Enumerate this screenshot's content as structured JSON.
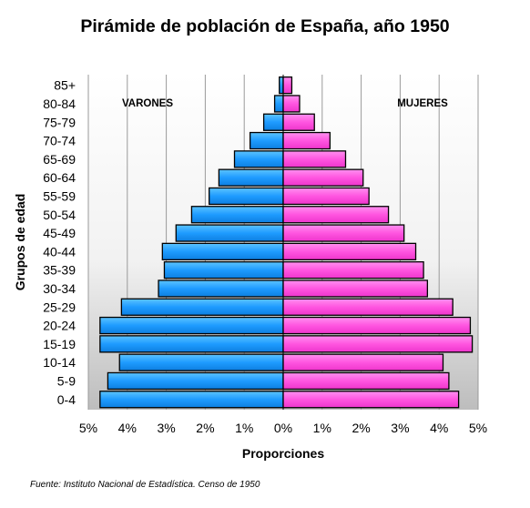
{
  "chart_data": {
    "type": "bar",
    "title": "Pirámide de población de España, año 1950",
    "xlabel": "Proporciones",
    "ylabel": "Grupos de edad",
    "categories": [
      "0-4",
      "5-9",
      "10-14",
      "15-19",
      "20-24",
      "25-29",
      "30-34",
      "35-39",
      "40-44",
      "45-49",
      "50-54",
      "55-59",
      "60-64",
      "65-69",
      "70-74",
      "75-79",
      "80-84",
      "85+"
    ],
    "series": [
      {
        "name": "VARONES",
        "color": "#1e9bff",
        "values": [
          4.7,
          4.5,
          4.2,
          4.7,
          4.7,
          4.15,
          3.2,
          3.05,
          3.1,
          2.75,
          2.35,
          1.9,
          1.65,
          1.25,
          0.85,
          0.5,
          0.22,
          0.1
        ]
      },
      {
        "name": "MUJERES",
        "color": "#ff55e0",
        "values": [
          4.5,
          4.25,
          4.1,
          4.85,
          4.8,
          4.35,
          3.7,
          3.6,
          3.4,
          3.1,
          2.7,
          2.2,
          2.05,
          1.6,
          1.2,
          0.8,
          0.42,
          0.22
        ]
      }
    ],
    "xticks": [
      "5%",
      "4%",
      "3%",
      "2%",
      "1%",
      "0%",
      "1%",
      "2%",
      "3%",
      "4%",
      "5%"
    ],
    "xlim": [
      -5,
      5
    ],
    "grid": true
  },
  "source_text": "Fuente: Instituto Nacional de Estadística. Censo de 1950"
}
